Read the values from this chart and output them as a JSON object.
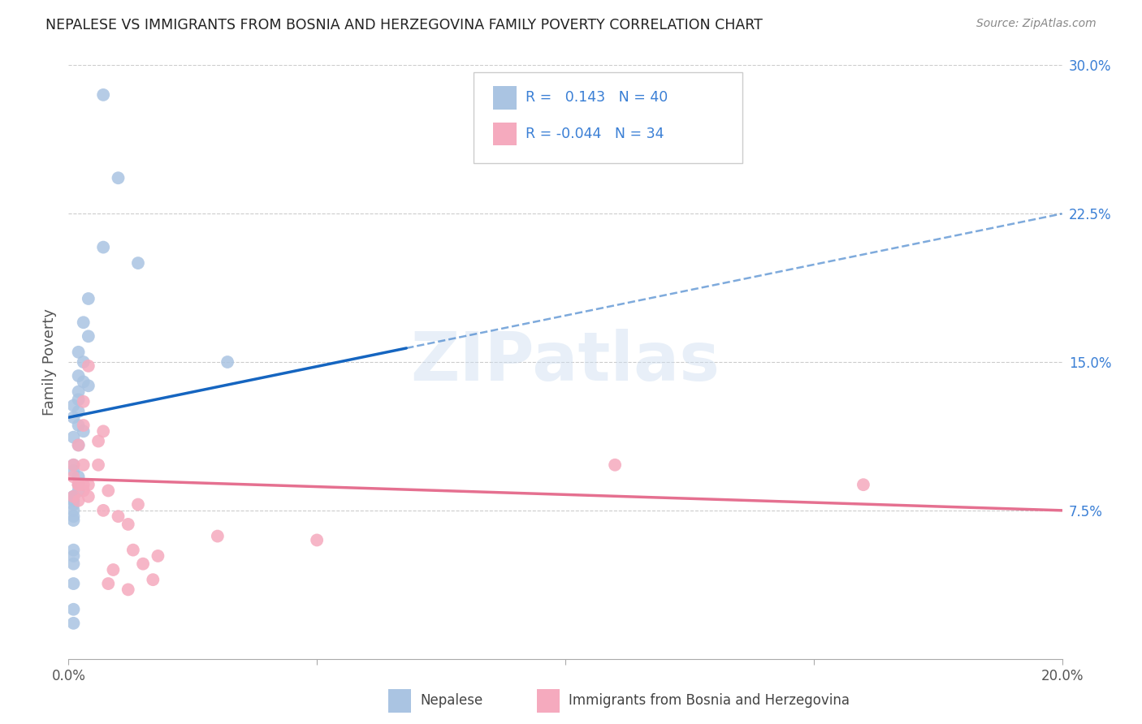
{
  "title": "NEPALESE VS IMMIGRANTS FROM BOSNIA AND HERZEGOVINA FAMILY POVERTY CORRELATION CHART",
  "source": "Source: ZipAtlas.com",
  "ylabel": "Family Poverty",
  "xlim": [
    0.0,
    0.2
  ],
  "ylim": [
    -0.01,
    0.32
  ],
  "plot_ylim": [
    0.0,
    0.3
  ],
  "xticks": [
    0.0,
    0.05,
    0.1,
    0.15,
    0.2
  ],
  "xtick_labels": [
    "0.0%",
    "",
    "",
    "",
    "20.0%"
  ],
  "ytick_values_right": [
    0.3,
    0.225,
    0.15,
    0.075
  ],
  "ytick_labels_right": [
    "30.0%",
    "22.5%",
    "15.0%",
    "7.5%"
  ],
  "nepalese_R": 0.143,
  "nepalese_N": 40,
  "bosnia_R": -0.044,
  "bosnia_N": 34,
  "nepalese_color": "#aac4e2",
  "bosnia_color": "#f5aabe",
  "nepalese_line_color": "#1565c0",
  "bosnia_line_color": "#e57090",
  "right_axis_color": "#3a7fd5",
  "legend_text_color": "#3a7fd5",
  "watermark": "ZIPatlas",
  "nepalese_line_x0": 0.0,
  "nepalese_line_y0": 0.122,
  "nepalese_line_x1": 0.068,
  "nepalese_line_y1": 0.157,
  "bosnia_line_x0": 0.0,
  "bosnia_line_y0": 0.091,
  "bosnia_line_x1": 0.2,
  "bosnia_line_y1": 0.075,
  "nepalese_scatter_x": [
    0.007,
    0.01,
    0.007,
    0.014,
    0.004,
    0.003,
    0.004,
    0.002,
    0.003,
    0.002,
    0.003,
    0.004,
    0.002,
    0.002,
    0.001,
    0.002,
    0.001,
    0.002,
    0.003,
    0.001,
    0.002,
    0.001,
    0.001,
    0.002,
    0.002,
    0.002,
    0.001,
    0.001,
    0.001,
    0.001,
    0.001,
    0.001,
    0.001,
    0.001,
    0.001,
    0.001,
    0.001,
    0.032,
    0.001,
    0.001
  ],
  "nepalese_scatter_y": [
    0.285,
    0.243,
    0.208,
    0.2,
    0.182,
    0.17,
    0.163,
    0.155,
    0.15,
    0.143,
    0.14,
    0.138,
    0.135,
    0.131,
    0.128,
    0.125,
    0.122,
    0.118,
    0.115,
    0.112,
    0.108,
    0.098,
    0.095,
    0.092,
    0.088,
    0.085,
    0.082,
    0.082,
    0.08,
    0.078,
    0.075,
    0.072,
    0.07,
    0.055,
    0.052,
    0.048,
    0.038,
    0.15,
    0.025,
    0.018
  ],
  "bosnia_scatter_x": [
    0.001,
    0.001,
    0.002,
    0.003,
    0.004,
    0.003,
    0.002,
    0.003,
    0.007,
    0.004,
    0.006,
    0.002,
    0.003,
    0.003,
    0.001,
    0.002,
    0.006,
    0.008,
    0.004,
    0.014,
    0.007,
    0.01,
    0.012,
    0.013,
    0.018,
    0.015,
    0.009,
    0.017,
    0.008,
    0.012,
    0.11,
    0.16,
    0.03,
    0.05
  ],
  "bosnia_scatter_y": [
    0.098,
    0.092,
    0.088,
    0.13,
    0.088,
    0.118,
    0.108,
    0.098,
    0.115,
    0.148,
    0.098,
    0.088,
    0.088,
    0.085,
    0.082,
    0.08,
    0.11,
    0.085,
    0.082,
    0.078,
    0.075,
    0.072,
    0.068,
    0.055,
    0.052,
    0.048,
    0.045,
    0.04,
    0.038,
    0.035,
    0.098,
    0.088,
    0.062,
    0.06
  ]
}
